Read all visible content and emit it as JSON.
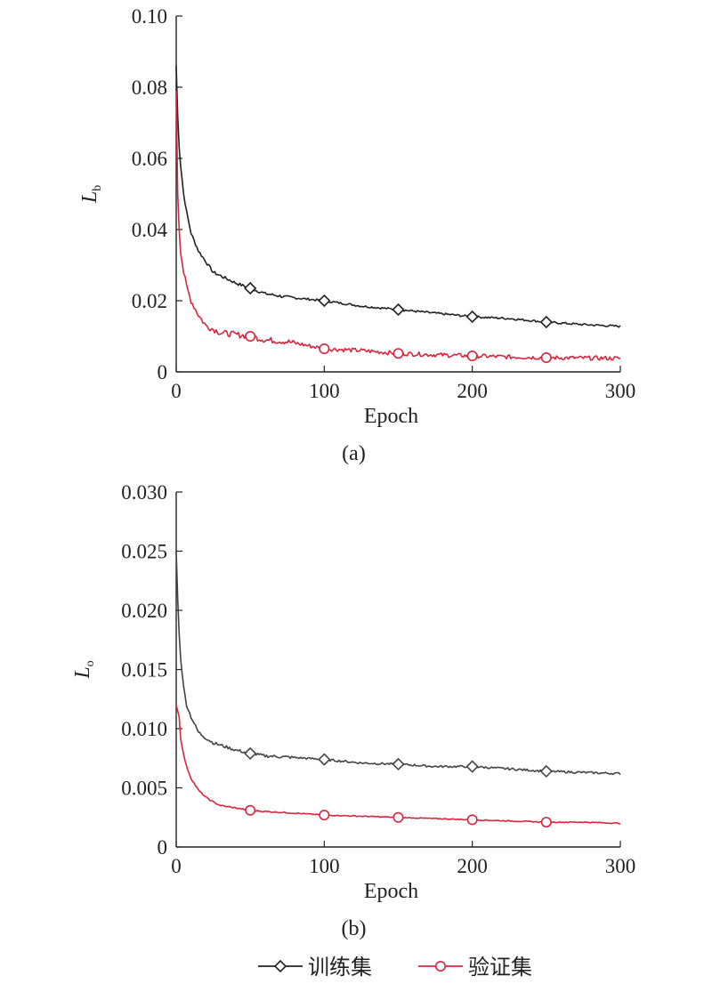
{
  "chart_data": [
    {
      "type": "line",
      "panel_label": "(a)",
      "xlabel": "Epoch",
      "ylabel_main": "L",
      "ylabel_sub": "b",
      "xlim": [
        0,
        300
      ],
      "ylim": [
        0,
        0.1
      ],
      "xticks": [
        0,
        100,
        200,
        300
      ],
      "xtick_labels": [
        "0",
        "100",
        "200",
        "300"
      ],
      "yticks": [
        0,
        0.02,
        0.04,
        0.06,
        0.08,
        0.1
      ],
      "ytick_labels": [
        "0",
        "0.02",
        "0.04",
        "0.06",
        "0.08",
        "0.10"
      ],
      "series": [
        {
          "name": "训练集",
          "color": "#222222",
          "marker": "diamond",
          "markers_at": [
            50,
            100,
            150,
            200,
            250
          ],
          "noise": 0.0006,
          "x": [
            0,
            1,
            2,
            3,
            5,
            7,
            10,
            15,
            20,
            25,
            30,
            40,
            50,
            60,
            75,
            100,
            125,
            150,
            175,
            200,
            225,
            250,
            275,
            300
          ],
          "y": [
            0.086,
            0.072,
            0.063,
            0.058,
            0.05,
            0.045,
            0.039,
            0.034,
            0.031,
            0.028,
            0.027,
            0.025,
            0.0235,
            0.022,
            0.021,
            0.02,
            0.0185,
            0.0175,
            0.0165,
            0.0155,
            0.015,
            0.014,
            0.0133,
            0.0128
          ]
        },
        {
          "name": "验证集",
          "color": "#d7263d",
          "marker": "circle",
          "markers_at": [
            50,
            100,
            150,
            200,
            250
          ],
          "noise": 0.0012,
          "x": [
            0,
            1,
            2,
            3,
            5,
            7,
            10,
            15,
            20,
            25,
            30,
            40,
            50,
            60,
            75,
            100,
            125,
            150,
            175,
            200,
            225,
            250,
            275,
            300
          ],
          "y": [
            0.079,
            0.05,
            0.04,
            0.034,
            0.028,
            0.024,
            0.02,
            0.016,
            0.013,
            0.012,
            0.011,
            0.0105,
            0.01,
            0.009,
            0.0085,
            0.0065,
            0.006,
            0.0052,
            0.0048,
            0.0045,
            0.0042,
            0.004,
            0.0039,
            0.0038
          ]
        }
      ]
    },
    {
      "type": "line",
      "panel_label": "(b)",
      "xlabel": "Epoch",
      "ylabel_main": "L",
      "ylabel_sub": "o",
      "xlim": [
        0,
        300
      ],
      "ylim": [
        0,
        0.03
      ],
      "xticks": [
        0,
        100,
        200,
        300
      ],
      "xtick_labels": [
        "0",
        "100",
        "200",
        "300"
      ],
      "yticks": [
        0,
        0.005,
        0.01,
        0.015,
        0.02,
        0.025,
        0.03
      ],
      "ytick_labels": [
        "0",
        "0.005",
        "0.010",
        "0.015",
        "0.020",
        "0.025",
        "0.030"
      ],
      "series": [
        {
          "name": "训练集",
          "color": "#444444",
          "marker": "diamond",
          "markers_at": [
            50,
            100,
            150,
            200,
            250
          ],
          "noise": 0.00018,
          "x": [
            0,
            1,
            2,
            3,
            5,
            7,
            10,
            15,
            20,
            25,
            30,
            40,
            50,
            60,
            75,
            100,
            125,
            150,
            175,
            200,
            225,
            250,
            275,
            300
          ],
          "y": [
            0.025,
            0.021,
            0.018,
            0.016,
            0.0135,
            0.012,
            0.011,
            0.0097,
            0.0092,
            0.0088,
            0.0086,
            0.0082,
            0.0079,
            0.0077,
            0.0076,
            0.0074,
            0.0071,
            0.007,
            0.0068,
            0.0068,
            0.0066,
            0.0064,
            0.0063,
            0.0062
          ]
        },
        {
          "name": "验证集",
          "color": "#d7263d",
          "marker": "circle",
          "markers_at": [
            50,
            100,
            150,
            200,
            250
          ],
          "noise": 8e-05,
          "x": [
            0,
            1,
            2,
            3,
            5,
            7,
            10,
            15,
            20,
            25,
            30,
            40,
            50,
            60,
            75,
            100,
            125,
            150,
            175,
            200,
            225,
            250,
            275,
            300
          ],
          "y": [
            0.012,
            0.0115,
            0.011,
            0.0092,
            0.0078,
            0.0068,
            0.0058,
            0.0048,
            0.0042,
            0.0038,
            0.0035,
            0.0033,
            0.0031,
            0.003,
            0.0029,
            0.0027,
            0.0026,
            0.0025,
            0.0024,
            0.0023,
            0.0022,
            0.0021,
            0.0021,
            0.002
          ]
        }
      ]
    }
  ],
  "legend": {
    "placement": "bottom",
    "items": [
      {
        "label": "训练集",
        "color": "#222222",
        "marker": "diamond"
      },
      {
        "label": "验证集",
        "color": "#d7263d",
        "marker": "circle"
      }
    ]
  }
}
